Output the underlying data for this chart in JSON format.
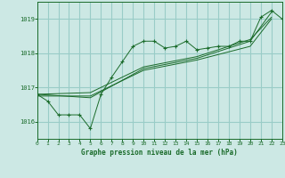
{
  "title": "Graphe pression niveau de la mer (hPa)",
  "bg_color": "#cce8e4",
  "grid_color": "#99ccc7",
  "line_color": "#1a6b2a",
  "x_min": 0,
  "x_max": 23,
  "y_min": 1015.5,
  "y_max": 1019.5,
  "yticks": [
    1016,
    1017,
    1018,
    1019
  ],
  "xticks": [
    0,
    1,
    2,
    3,
    4,
    5,
    6,
    7,
    8,
    9,
    10,
    11,
    12,
    13,
    14,
    15,
    16,
    17,
    18,
    19,
    20,
    21,
    22,
    23
  ],
  "series1": {
    "x": [
      0,
      1,
      2,
      3,
      4,
      5,
      6,
      7,
      8,
      9,
      10,
      11,
      12,
      13,
      14,
      15,
      16,
      17,
      18,
      19,
      20,
      21,
      22,
      23
    ],
    "y": [
      1016.8,
      1016.6,
      1016.2,
      1016.2,
      1016.2,
      1015.8,
      1016.8,
      1017.3,
      1017.75,
      1018.2,
      1018.35,
      1018.35,
      1018.15,
      1018.2,
      1018.35,
      1018.1,
      1018.15,
      1018.2,
      1018.2,
      1018.35,
      1018.35,
      1019.05,
      1019.25,
      1019.0
    ]
  },
  "series2": {
    "x": [
      0,
      5,
      10,
      15,
      20,
      22
    ],
    "y": [
      1016.8,
      1016.7,
      1017.55,
      1017.85,
      1018.35,
      1019.2
    ]
  },
  "series3": {
    "x": [
      0,
      5,
      10,
      15,
      20,
      22
    ],
    "y": [
      1016.75,
      1016.75,
      1017.5,
      1017.8,
      1018.2,
      1019.0
    ]
  },
  "series4": {
    "x": [
      0,
      5,
      10,
      15,
      20,
      22
    ],
    "y": [
      1016.8,
      1016.85,
      1017.6,
      1017.9,
      1018.4,
      1019.05
    ]
  }
}
